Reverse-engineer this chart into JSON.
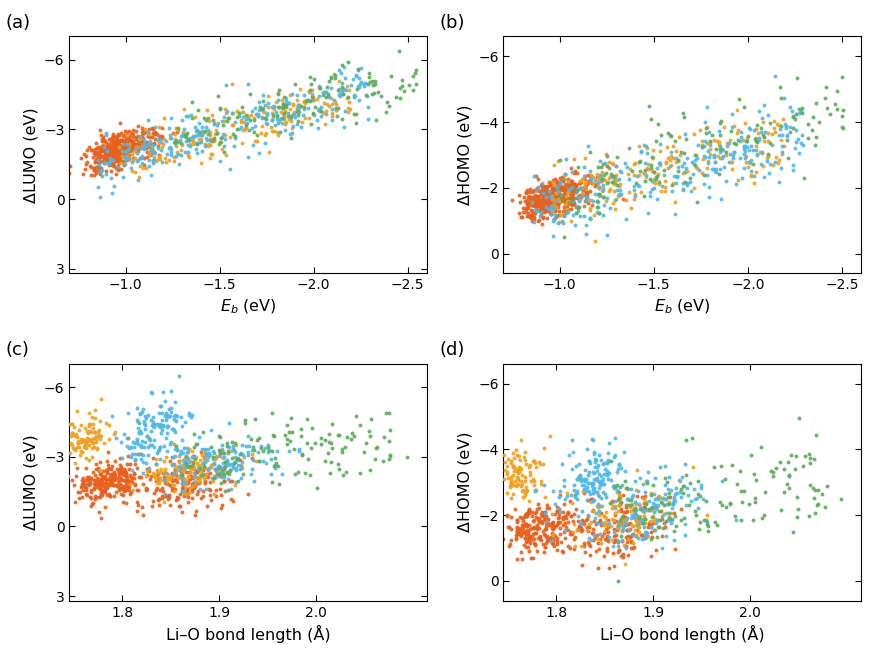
{
  "panels": [
    {
      "label": "(a)",
      "xlabel": "$E_{b}$ (eV)",
      "ylabel": "ΔLUMO (eV)",
      "xlim": [
        -0.7,
        -2.6
      ],
      "ylim": [
        3.2,
        -7.0
      ],
      "xticks": [
        -1.0,
        -1.5,
        -2.0,
        -2.5
      ],
      "yticks": [
        3,
        0,
        -3,
        -6
      ]
    },
    {
      "label": "(b)",
      "xlabel": "$E_{b}$ (eV)",
      "ylabel": "ΔHOMO (eV)",
      "xlim": [
        -0.7,
        -2.6
      ],
      "ylim": [
        0.6,
        -6.6
      ],
      "xticks": [
        -1.0,
        -1.5,
        -2.0,
        -2.5
      ],
      "yticks": [
        0,
        -2,
        -4,
        -6
      ]
    },
    {
      "label": "(c)",
      "xlabel": "Li–O bond length (Å)",
      "ylabel": "ΔLUMO (eV)",
      "xlim": [
        1.745,
        2.115
      ],
      "ylim": [
        3.2,
        -7.0
      ],
      "xticks": [
        1.8,
        1.9,
        2.0
      ],
      "yticks": [
        3,
        0,
        -3,
        -6
      ]
    },
    {
      "label": "(d)",
      "xlabel": "Li–O bond length (Å)",
      "ylabel": "ΔHOMO (eV)",
      "xlim": [
        1.745,
        2.115
      ],
      "ylim": [
        0.6,
        -6.6
      ],
      "xticks": [
        1.8,
        1.9,
        2.0
      ],
      "yticks": [
        0,
        -2,
        -4,
        -6
      ]
    }
  ],
  "colors": {
    "orange": "#E8601C",
    "blue": "#4DB8EA",
    "green": "#5BAD5B",
    "yellow": "#F0A020"
  },
  "marker_size": 8,
  "alpha": 0.9,
  "figsize": [
    8.75,
    6.57
  ],
  "dpi": 100
}
